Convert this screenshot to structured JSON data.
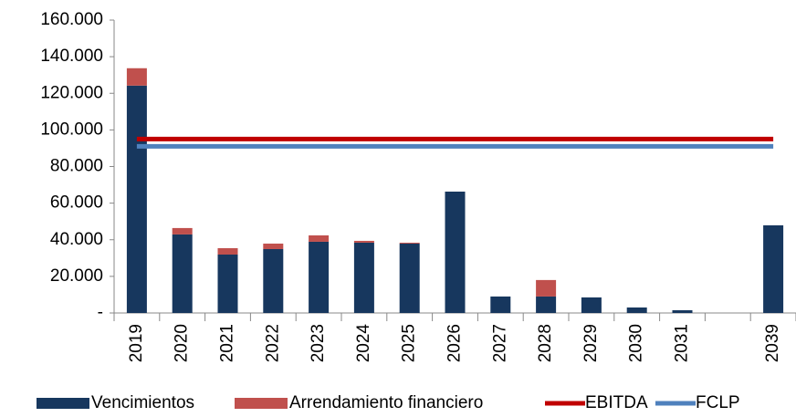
{
  "chart_data": {
    "type": "bar",
    "categories": [
      "2019",
      "2020",
      "2021",
      "2022",
      "2023",
      "2024",
      "2025",
      "2026",
      "2027",
      "2028",
      "2029",
      "2030",
      "2031",
      null,
      "2039"
    ],
    "series": [
      {
        "name": "Vencimientos",
        "type": "bar",
        "color": "#17375e",
        "values": [
          124200,
          42900,
          31900,
          34900,
          38900,
          38400,
          37900,
          66300,
          9000,
          9000,
          8500,
          3000,
          1500,
          null,
          47900
        ]
      },
      {
        "name": "Arrendamiento financiero",
        "type": "bar",
        "color": "#c0504d",
        "values": [
          9500,
          3500,
          3500,
          3000,
          3500,
          1000,
          500,
          0,
          0,
          9000,
          0,
          0,
          0,
          null,
          0
        ]
      },
      {
        "name": "EBITDA",
        "type": "line",
        "color": "#c00000",
        "values": [
          95000,
          95000,
          95000,
          95000,
          95000,
          95000,
          95000,
          95000,
          95000,
          95000,
          95000,
          95000,
          95000,
          95000,
          95000
        ]
      },
      {
        "name": "FCLP",
        "type": "line",
        "color": "#4f81bd",
        "values": [
          91000,
          91000,
          91000,
          91000,
          91000,
          91000,
          91000,
          91000,
          91000,
          91000,
          91000,
          91000,
          91000,
          91000,
          91000
        ]
      }
    ],
    "stacked": true,
    "ylim": [
      0,
      160000
    ],
    "yticks": [
      {
        "value": 0,
        "label": "-"
      },
      {
        "value": 20000,
        "label": "20.000"
      },
      {
        "value": 40000,
        "label": "40.000"
      },
      {
        "value": 60000,
        "label": "60.000"
      },
      {
        "value": 80000,
        "label": "80.000"
      },
      {
        "value": 100000,
        "label": "100.000"
      },
      {
        "value": 120000,
        "label": "120.000"
      },
      {
        "value": 140000,
        "label": "140.000"
      },
      {
        "value": 160000,
        "label": "160.000"
      }
    ],
    "legend": "bottom"
  }
}
